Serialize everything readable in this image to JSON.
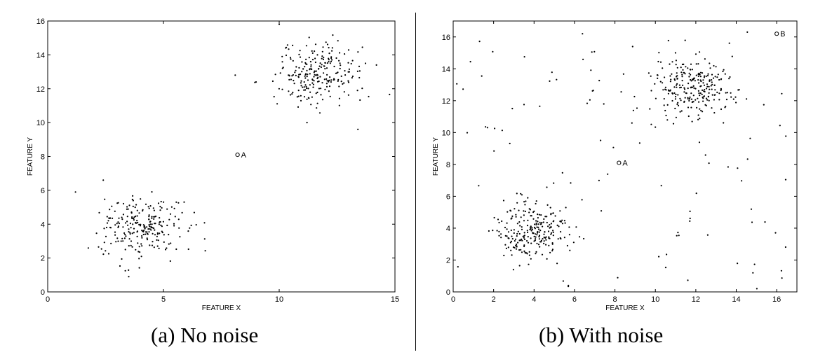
{
  "chart_data": [
    {
      "type": "scatter",
      "panel": "a",
      "caption": "(a) No noise",
      "xlabel": "FEATURE X",
      "ylabel": "FEATURE Y",
      "xlim": [
        0,
        15
      ],
      "ylim": [
        0,
        16
      ],
      "xticks": [
        0,
        5,
        10,
        15
      ],
      "yticks": [
        0,
        2,
        4,
        6,
        8,
        10,
        12,
        14,
        16
      ],
      "grid": false,
      "clusters": [
        {
          "center": [
            4.0,
            3.8
          ],
          "spread": [
            0.9,
            0.9
          ],
          "count": 240
        },
        {
          "center": [
            11.8,
            12.9
          ],
          "spread": [
            0.95,
            0.9
          ],
          "count": 240
        }
      ],
      "noise_count": 0,
      "marked_points": [
        {
          "label": "A",
          "x": 8.2,
          "y": 8.1
        }
      ],
      "extra_points": [
        [
          1.2,
          5.9
        ],
        [
          8.1,
          12.8
        ],
        [
          9.0,
          12.4
        ],
        [
          10.0,
          15.8
        ],
        [
          13.4,
          9.6
        ],
        [
          11.2,
          10.0
        ],
        [
          14.2,
          13.4
        ],
        [
          2.4,
          6.6
        ],
        [
          3.5,
          0.9
        ]
      ]
    },
    {
      "type": "scatter",
      "panel": "b",
      "caption": "(b) With noise",
      "xlabel": "FEATURE X",
      "ylabel": "FEATURE Y",
      "xlim": [
        0,
        17
      ],
      "ylim": [
        0,
        17
      ],
      "xticks": [
        0,
        2,
        4,
        6,
        8,
        10,
        12,
        14,
        16
      ],
      "yticks": [
        0,
        2,
        4,
        6,
        8,
        10,
        12,
        14,
        16
      ],
      "grid": false,
      "clusters": [
        {
          "center": [
            4.0,
            3.8
          ],
          "spread": [
            0.9,
            0.9
          ],
          "count": 240
        },
        {
          "center": [
            11.8,
            12.9
          ],
          "spread": [
            0.95,
            0.9
          ],
          "count": 240
        }
      ],
      "noise_count": 120,
      "marked_points": [
        {
          "label": "A",
          "x": 8.2,
          "y": 8.1
        },
        {
          "label": "B",
          "x": 16.0,
          "y": 16.2
        }
      ],
      "extra_points": []
    }
  ]
}
